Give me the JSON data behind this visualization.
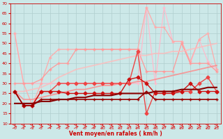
{
  "xlabel": "Vent moyen/en rafales ( km/h )",
  "background_color": "#cce8e8",
  "grid_color": "#b0cece",
  "x": [
    0,
    1,
    2,
    3,
    4,
    5,
    6,
    7,
    8,
    9,
    10,
    11,
    12,
    13,
    14,
    15,
    16,
    17,
    18,
    19,
    20,
    21,
    22,
    23
  ],
  "series": [
    {
      "values": [
        55,
        30,
        30,
        30,
        30,
        30,
        30,
        30,
        30,
        30,
        30,
        30,
        30,
        30,
        30,
        68,
        30,
        68,
        51,
        51,
        40,
        52,
        41,
        37
      ],
      "color": "#ffbbcc",
      "linewidth": 0.9,
      "marker": "+",
      "markersize": 3,
      "alpha": 1.0
    },
    {
      "values": [
        55,
        30,
        19,
        30,
        43,
        47,
        47,
        47,
        47,
        47,
        47,
        47,
        47,
        47,
        47,
        68,
        58,
        58,
        51,
        51,
        41,
        52,
        55,
        37
      ],
      "color": "#ffaaaa",
      "linewidth": 0.9,
      "marker": "+",
      "markersize": 3,
      "alpha": 1.0
    },
    {
      "values": [
        30,
        30,
        30,
        32,
        37,
        40,
        40,
        47,
        47,
        47,
        47,
        47,
        47,
        47,
        47,
        36,
        36,
        36,
        36,
        50,
        40,
        40,
        40,
        36
      ],
      "color": "#ff9999",
      "linewidth": 0.9,
      "marker": "+",
      "markersize": 3,
      "alpha": 1.0
    },
    {
      "values": [
        26,
        26,
        27,
        28,
        30,
        33,
        35,
        37,
        38,
        39,
        40,
        41,
        42,
        43,
        44,
        44,
        45,
        45,
        46,
        46,
        47,
        48,
        49,
        50
      ],
      "color": "#ffbbbb",
      "linewidth": 1.3,
      "marker": null,
      "markersize": 0,
      "alpha": 0.8
    },
    {
      "values": [
        26,
        22,
        22,
        23,
        24,
        25,
        26,
        27,
        27,
        28,
        29,
        29,
        30,
        30,
        31,
        31,
        32,
        33,
        34,
        35,
        36,
        37,
        38,
        39
      ],
      "color": "#ff8888",
      "linewidth": 1.3,
      "marker": null,
      "markersize": 0,
      "alpha": 0.8
    },
    {
      "values": [
        26,
        19,
        19,
        26,
        26,
        30,
        30,
        30,
        30,
        30,
        30,
        30,
        30,
        30,
        46,
        15,
        26,
        26,
        26,
        26,
        26,
        30,
        33,
        26
      ],
      "color": "#ee4444",
      "linewidth": 1.0,
      "marker": "D",
      "markersize": 2.5,
      "alpha": 1.0
    },
    {
      "values": [
        26,
        19,
        19,
        26,
        26,
        26,
        25,
        25,
        25,
        25,
        25,
        25,
        25,
        32,
        33,
        30,
        25,
        25,
        25,
        26,
        30,
        26,
        26,
        26
      ],
      "color": "#cc1111",
      "linewidth": 1.0,
      "marker": "D",
      "markersize": 2.5,
      "alpha": 1.0
    },
    {
      "values": [
        26,
        19,
        19,
        22,
        22,
        22,
        22,
        22,
        22,
        22,
        22,
        22,
        22,
        22,
        22,
        26,
        22,
        22,
        22,
        22,
        22,
        22,
        22,
        22
      ],
      "color": "#990000",
      "linewidth": 1.2,
      "marker": "+",
      "markersize": 3,
      "alpha": 1.0
    },
    {
      "values": [
        20,
        20,
        20,
        21,
        21,
        22,
        22,
        23,
        23,
        24,
        24,
        24,
        25,
        25,
        25,
        25,
        26,
        26,
        26,
        27,
        27,
        27,
        28,
        28
      ],
      "color": "#880000",
      "linewidth": 1.5,
      "marker": null,
      "markersize": 0,
      "alpha": 1.0
    }
  ],
  "ylim": [
    10,
    70
  ],
  "yticks": [
    10,
    15,
    20,
    25,
    30,
    35,
    40,
    45,
    50,
    55,
    60,
    65,
    70
  ],
  "xlim": [
    -0.5,
    23.5
  ],
  "xticks": [
    0,
    1,
    2,
    3,
    4,
    5,
    6,
    7,
    8,
    9,
    10,
    11,
    12,
    13,
    14,
    15,
    16,
    17,
    18,
    19,
    20,
    21,
    22,
    23
  ],
  "arrow_color": "#dd4444",
  "xlabel_color": "#cc0000",
  "tick_color": "#cc0000",
  "spine_color": "#cc0000"
}
